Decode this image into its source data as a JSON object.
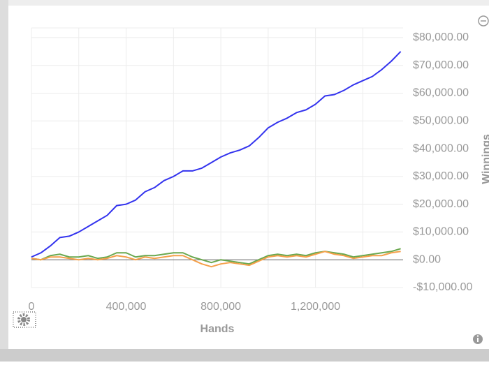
{
  "chart_data": {
    "type": "line",
    "xlabel": "Hands",
    "ylabel": "Winnings",
    "x": [
      0,
      40000,
      80000,
      120000,
      160000,
      200000,
      240000,
      280000,
      320000,
      360000,
      400000,
      440000,
      480000,
      520000,
      560000,
      600000,
      640000,
      680000,
      720000,
      760000,
      800000,
      840000,
      880000,
      920000,
      960000,
      1000000,
      1040000,
      1080000,
      1120000,
      1160000,
      1200000,
      1240000,
      1280000,
      1320000,
      1360000,
      1400000,
      1440000,
      1480000,
      1520000,
      1560000
    ],
    "series": [
      {
        "color": "#3333ee",
        "values": [
          1000,
          2500,
          5000,
          8000,
          8500,
          10000,
          12000,
          14000,
          16000,
          19500,
          20000,
          21500,
          24500,
          26000,
          28500,
          30000,
          32000,
          32000,
          33000,
          35000,
          37000,
          38500,
          39500,
          41000,
          44000,
          47500,
          49500,
          51000,
          53000,
          54000,
          56000,
          59000,
          59500,
          61000,
          63000,
          64500,
          66000,
          68500,
          71500,
          75000
        ]
      },
      {
        "color": "#f5a04a",
        "values": [
          500,
          0,
          1000,
          1000,
          500,
          0,
          500,
          0,
          500,
          1500,
          1000,
          0,
          1000,
          500,
          1000,
          1500,
          1500,
          0,
          -1500,
          -2500,
          -1500,
          -1000,
          -1500,
          -2000,
          -500,
          1000,
          1500,
          1000,
          1500,
          1000,
          2000,
          3000,
          2000,
          1500,
          500,
          1000,
          1500,
          1500,
          2500,
          3000
        ]
      },
      {
        "color": "#6aa84f",
        "values": [
          500,
          0,
          1500,
          2000,
          1000,
          1000,
          1500,
          500,
          1000,
          2500,
          2500,
          1000,
          1500,
          1500,
          2000,
          2500,
          2500,
          1000,
          0,
          -1000,
          0,
          -500,
          -1000,
          -1500,
          0,
          1500,
          2000,
          1500,
          2000,
          1500,
          2500,
          3000,
          2500,
          2000,
          1000,
          1500,
          2000,
          2500,
          3000,
          4000
        ]
      }
    ],
    "xlim": [
      0,
      1570000
    ],
    "xticks": [
      0,
      {
        "value": 400000,
        "label": "400,000"
      },
      {
        "value": 800000,
        "label": "800,000"
      },
      {
        "value": 1200000,
        "label": "1,200,000"
      }
    ],
    "xgrid": [
      200000,
      600000,
      1000000,
      1400000
    ],
    "ylim": [
      -10000,
      83500
    ],
    "yticks": [
      {
        "value": -10000,
        "label": "-$10,000.00"
      },
      {
        "value": 0,
        "label": "$0.00"
      },
      {
        "value": 10000,
        "label": "$10,000.00"
      },
      {
        "value": 20000,
        "label": "$20,000.00"
      },
      {
        "value": 30000,
        "label": "$30,000.00"
      },
      {
        "value": 40000,
        "label": "$40,000.00"
      },
      {
        "value": 50000,
        "label": "$50,000.00"
      },
      {
        "value": 60000,
        "label": "$60,000.00"
      },
      {
        "value": 70000,
        "label": "$70,000.00"
      },
      {
        "value": 80000,
        "label": "$80,000.00"
      }
    ],
    "grid": true
  }
}
